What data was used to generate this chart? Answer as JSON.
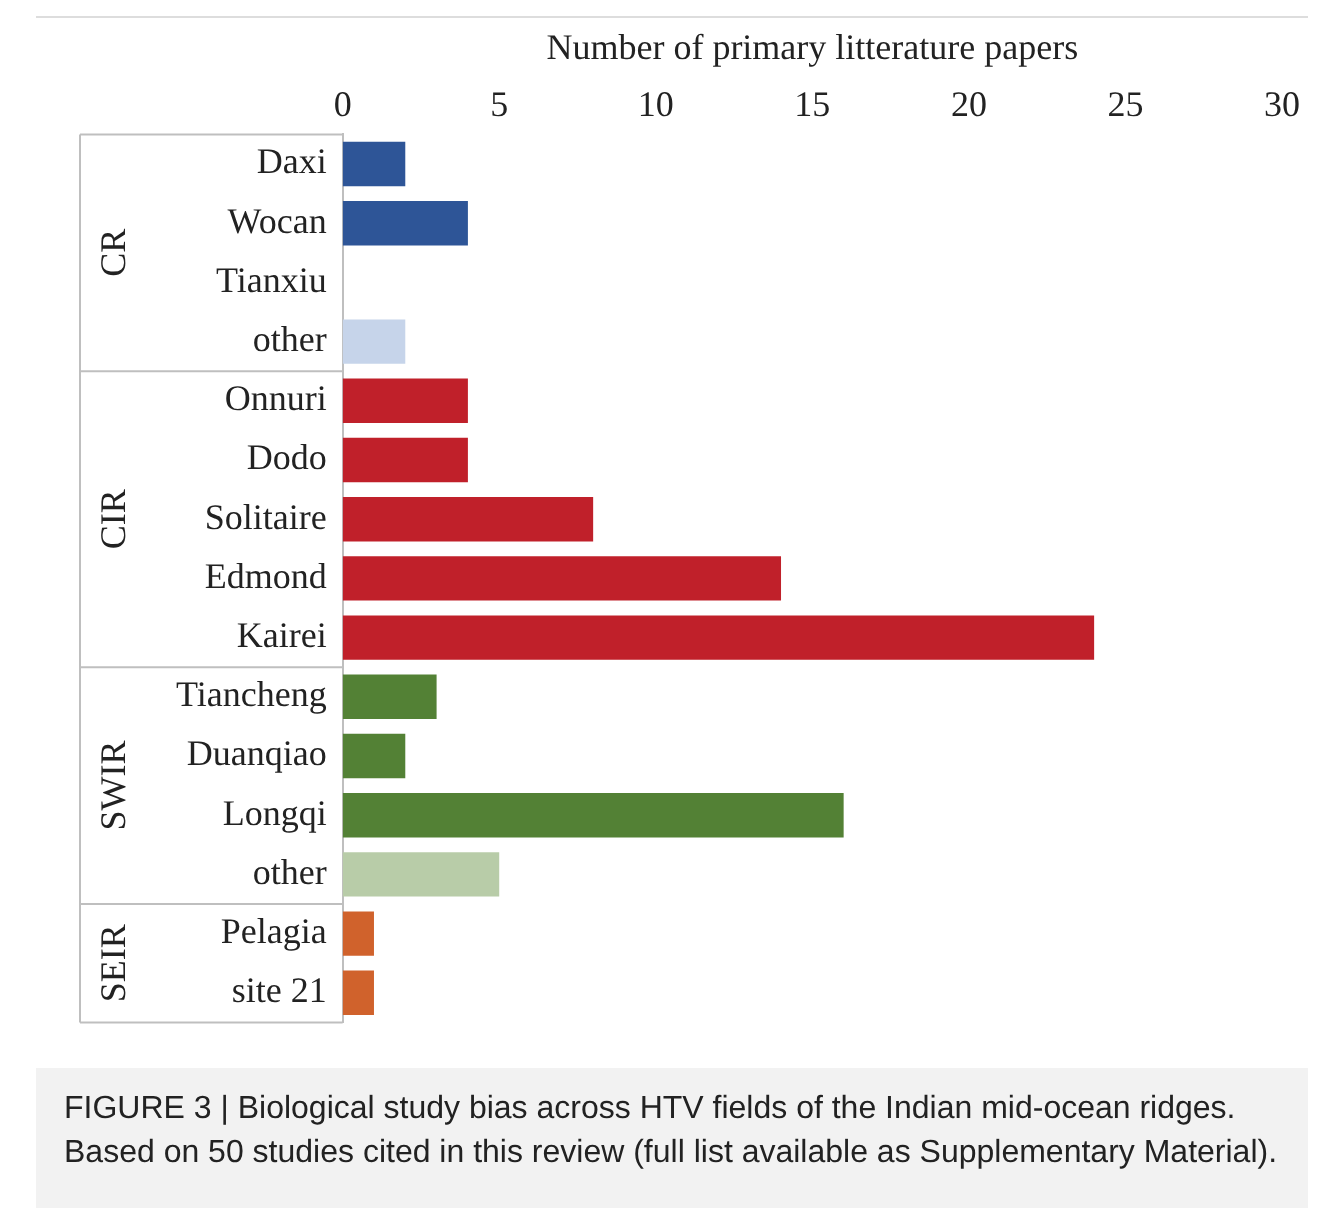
{
  "chart_data": {
    "type": "bar",
    "orientation": "horizontal",
    "xlabel": "Number of primary litterature papers",
    "categories": [
      "Daxi",
      "Wocan",
      "Tianxiu",
      "other",
      "Onnuri",
      "Dodo",
      "Solitaire",
      "Edmond",
      "Kairei",
      "Tiancheng",
      "Duanqiao",
      "Longqi",
      "other",
      "Pelagia",
      "site 21"
    ],
    "values": [
      2,
      4,
      0,
      2,
      4,
      4,
      8,
      14,
      24,
      3,
      2,
      16,
      5,
      1,
      1
    ],
    "colors": [
      "#2e5597",
      "#2e5597",
      "#2e5597",
      "#c6d4ea",
      "#c0202a",
      "#c0202a",
      "#c0202a",
      "#c0202a",
      "#c0202a",
      "#538135",
      "#538135",
      "#538135",
      "#b8cca8",
      "#d0622c",
      "#d0622c"
    ],
    "xlim": [
      0,
      30
    ],
    "xticks": [
      0,
      5,
      10,
      15,
      20,
      25,
      30
    ],
    "grid": false,
    "legend": false,
    "annotations": [
      "CR",
      "CIR",
      "SWIR",
      "SEIR",
      "FIGURE 3 | Biological study bias across HTV fields of the Indian mid-ocean ridges. Based on 50 studies cited in this review (full list available as Supplementary Material)."
    ]
  }
}
